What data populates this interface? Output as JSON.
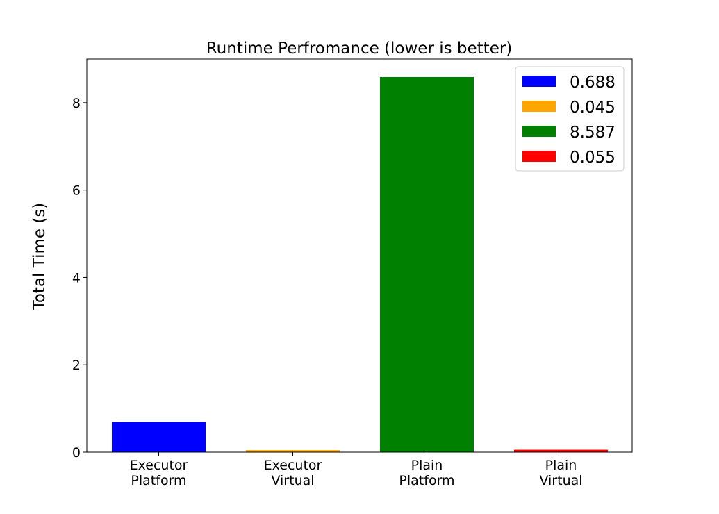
{
  "chart_data": {
    "type": "bar",
    "title": "Runtime Perfromance (lower is better)",
    "xlabel": "",
    "ylabel": "Total Time (s)",
    "categories": [
      [
        "Executor",
        "Platform"
      ],
      [
        "Executor",
        "Virtual"
      ],
      [
        "Plain",
        "Platform"
      ],
      [
        "Plain",
        "Virtual"
      ]
    ],
    "values": [
      0.688,
      0.045,
      8.587,
      0.055
    ],
    "colors": [
      "#0000ff",
      "#ffa500",
      "#008000",
      "#ff0000"
    ],
    "ylim": [
      0,
      9.0
    ],
    "yticks": [
      0,
      2,
      4,
      6,
      8
    ],
    "ytick_labels": [
      "0",
      "2",
      "4",
      "6",
      "8"
    ],
    "legend": {
      "position": "upper-right",
      "entries": [
        "0.688",
        "0.045",
        "8.587",
        "0.055"
      ]
    },
    "grid": false
  }
}
